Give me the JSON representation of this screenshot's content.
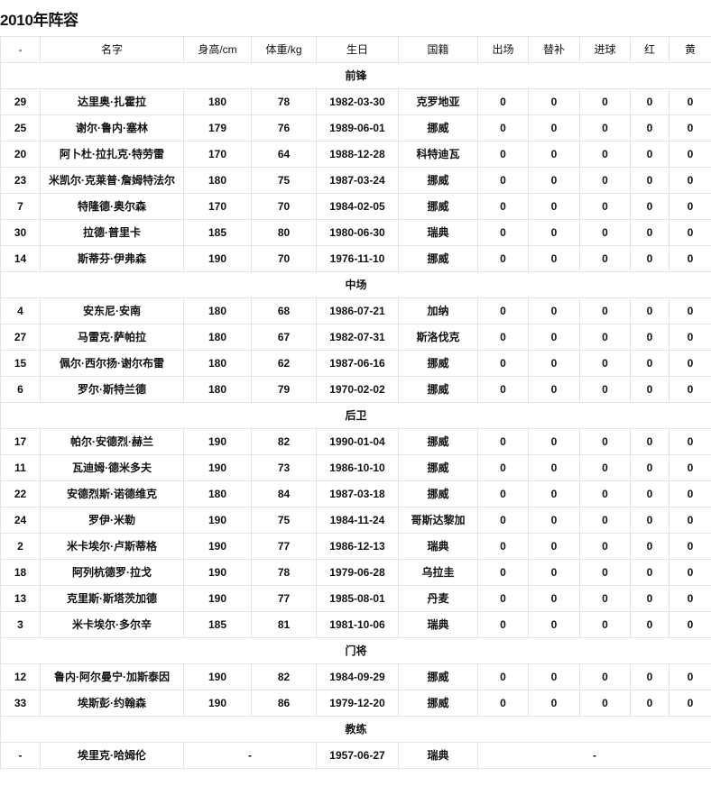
{
  "title": "2010年阵容",
  "headers": [
    "-",
    "名字",
    "身高/cm",
    "体重/kg",
    "生日",
    "国籍",
    "出场",
    "替补",
    "进球",
    "红",
    "黄"
  ],
  "groups": [
    {
      "label": "前锋",
      "players": [
        [
          "29",
          "达里奥·扎霍拉",
          "180",
          "78",
          "1982-03-30",
          "克罗地亚",
          "0",
          "0",
          "0",
          "0",
          "0"
        ],
        [
          "25",
          "谢尔·鲁内·塞林",
          "179",
          "76",
          "1989-06-01",
          "挪威",
          "0",
          "0",
          "0",
          "0",
          "0"
        ],
        [
          "20",
          "阿卜杜·拉扎克·特劳雷",
          "170",
          "64",
          "1988-12-28",
          "科特迪瓦",
          "0",
          "0",
          "0",
          "0",
          "0"
        ],
        [
          "23",
          "米凯尔·克莱普·詹姆特法尔",
          "180",
          "75",
          "1987-03-24",
          "挪威",
          "0",
          "0",
          "0",
          "0",
          "0"
        ],
        [
          "7",
          "特隆德·奥尔森",
          "170",
          "70",
          "1984-02-05",
          "挪威",
          "0",
          "0",
          "0",
          "0",
          "0"
        ],
        [
          "30",
          "拉德·普里卡",
          "185",
          "80",
          "1980-06-30",
          "瑞典",
          "0",
          "0",
          "0",
          "0",
          "0"
        ],
        [
          "14",
          "斯蒂芬·伊弗森",
          "190",
          "70",
          "1976-11-10",
          "挪威",
          "0",
          "0",
          "0",
          "0",
          "0"
        ]
      ]
    },
    {
      "label": "中场",
      "players": [
        [
          "4",
          "安东尼·安南",
          "180",
          "68",
          "1986-07-21",
          "加纳",
          "0",
          "0",
          "0",
          "0",
          "0"
        ],
        [
          "27",
          "马雷克·萨帕拉",
          "180",
          "67",
          "1982-07-31",
          "斯洛伐克",
          "0",
          "0",
          "0",
          "0",
          "0"
        ],
        [
          "15",
          "佩尔·西尔扬·谢尔布雷",
          "180",
          "62",
          "1987-06-16",
          "挪威",
          "0",
          "0",
          "0",
          "0",
          "0"
        ],
        [
          "6",
          "罗尔·斯特兰德",
          "180",
          "79",
          "1970-02-02",
          "挪威",
          "0",
          "0",
          "0",
          "0",
          "0"
        ]
      ]
    },
    {
      "label": "后卫",
      "players": [
        [
          "17",
          "帕尔·安德烈·赫兰",
          "190",
          "82",
          "1990-01-04",
          "挪威",
          "0",
          "0",
          "0",
          "0",
          "0"
        ],
        [
          "11",
          "瓦迪姆·德米多夫",
          "190",
          "73",
          "1986-10-10",
          "挪威",
          "0",
          "0",
          "0",
          "0",
          "0"
        ],
        [
          "22",
          "安德烈斯·诺德维克",
          "180",
          "84",
          "1987-03-18",
          "挪威",
          "0",
          "0",
          "0",
          "0",
          "0"
        ],
        [
          "24",
          "罗伊·米勒",
          "190",
          "75",
          "1984-11-24",
          "哥斯达黎加",
          "0",
          "0",
          "0",
          "0",
          "0"
        ],
        [
          "2",
          "米卡埃尔·卢斯蒂格",
          "190",
          "77",
          "1986-12-13",
          "瑞典",
          "0",
          "0",
          "0",
          "0",
          "0"
        ],
        [
          "18",
          "阿列杭德罗·拉戈",
          "190",
          "78",
          "1979-06-28",
          "乌拉圭",
          "0",
          "0",
          "0",
          "0",
          "0"
        ],
        [
          "13",
          "克里斯·斯塔茨加德",
          "190",
          "77",
          "1985-08-01",
          "丹麦",
          "0",
          "0",
          "0",
          "0",
          "0"
        ],
        [
          "3",
          "米卡埃尔·多尔辛",
          "185",
          "81",
          "1981-10-06",
          "瑞典",
          "0",
          "0",
          "0",
          "0",
          "0"
        ]
      ]
    },
    {
      "label": "门将",
      "players": [
        [
          "12",
          "鲁内·阿尔曼宁·加斯泰因",
          "190",
          "82",
          "1984-09-29",
          "挪威",
          "0",
          "0",
          "0",
          "0",
          "0"
        ],
        [
          "33",
          "埃斯彭·约翰森",
          "190",
          "86",
          "1979-12-20",
          "挪威",
          "0",
          "0",
          "0",
          "0",
          "0"
        ]
      ]
    }
  ],
  "coach": {
    "label": "教练",
    "number": "-",
    "name": "埃里克·哈姆伦",
    "body": "-",
    "birthday": "1957-06-27",
    "nationality": "瑞典",
    "stats": "-"
  }
}
